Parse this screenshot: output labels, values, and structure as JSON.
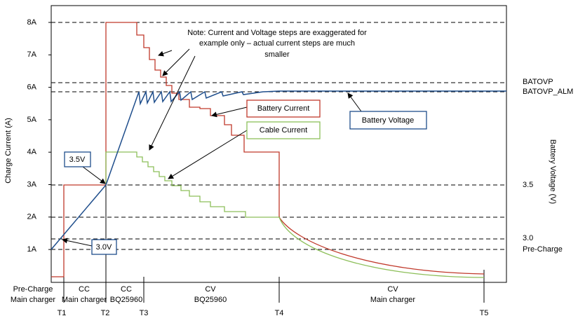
{
  "title_note": [
    "Note: Current and Voltage steps are exaggerated for",
    "example only – actual current steps are much",
    "smaller"
  ],
  "y_axis": {
    "title": "Charge Current (A)",
    "ticks": [
      "8A",
      "7A",
      "6A",
      "5A",
      "4A",
      "3A",
      "2A",
      "1A"
    ]
  },
  "y2_axis": {
    "title": "Battery Voltage (V)",
    "labels": [
      "BATOVP",
      "BATOVP_ALM",
      "3.5",
      "3.0",
      "Pre-Charge"
    ]
  },
  "callouts": [
    "Battery Current",
    "Cable Current",
    "Battery Voltage",
    "3.5V",
    "3.0V"
  ],
  "phases": [
    [
      "Pre-Charge",
      "Main charger"
    ],
    [
      "CC",
      "Main charger"
    ],
    [
      "CC",
      "BQ25960"
    ],
    [
      "CV",
      "BQ25960"
    ],
    [
      "CV",
      "Main charger"
    ]
  ],
  "times": [
    "T1",
    "T2",
    "T3",
    "T4",
    "T5"
  ]
}
